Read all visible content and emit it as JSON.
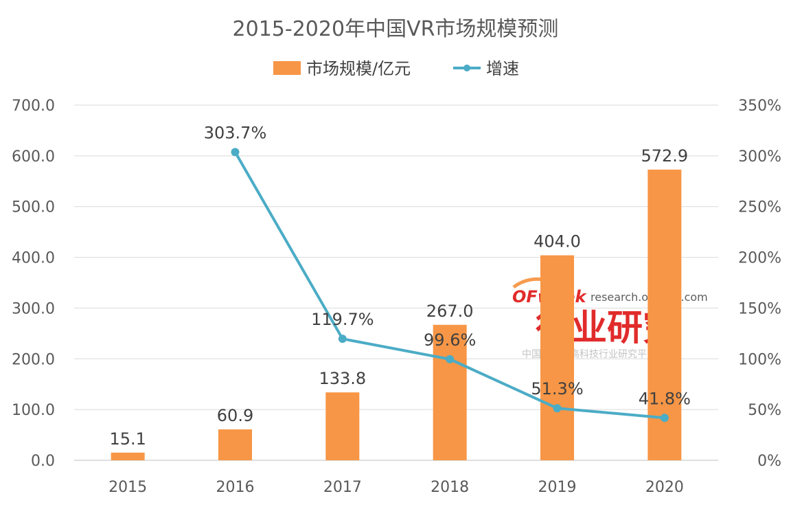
{
  "chart_data": {
    "type": "bar",
    "title": "2015-2020年中国VR市场规模预测",
    "categories": [
      "2015",
      "2016",
      "2017",
      "2018",
      "2019",
      "2020"
    ],
    "series": [
      {
        "name": "市场规模/亿元",
        "type": "bar",
        "axis": "left",
        "color": "#F79646",
        "values": [
          15.1,
          60.9,
          133.8,
          267.0,
          404.0,
          572.9
        ],
        "labels": [
          "15.1",
          "60.9",
          "133.8",
          "267.0",
          "404.0",
          "572.9"
        ]
      },
      {
        "name": "增速",
        "type": "line",
        "axis": "right",
        "color": "#4BACC6",
        "values": [
          null,
          303.7,
          119.7,
          99.6,
          51.3,
          41.8
        ],
        "labels": [
          "",
          "303.7%",
          "119.7%",
          "99.6%",
          "51.3%",
          "41.8%"
        ]
      }
    ],
    "y_left": {
      "min": 0,
      "max": 700,
      "step": 100,
      "ticks": [
        "0.0",
        "100.0",
        "200.0",
        "300.0",
        "400.0",
        "500.0",
        "600.0",
        "700.0"
      ]
    },
    "y_right": {
      "min": 0,
      "max": 350,
      "step": 50,
      "ticks": [
        "0%",
        "50%",
        "100%",
        "150%",
        "200%",
        "250%",
        "300%",
        "350%"
      ]
    },
    "grid": true,
    "legend": "top-center"
  },
  "watermark": {
    "brand": "OFweek",
    "url": "research.ofweek.com",
    "title": "行业研究",
    "subtitle": "中国领先的高科技行业研究平台"
  }
}
